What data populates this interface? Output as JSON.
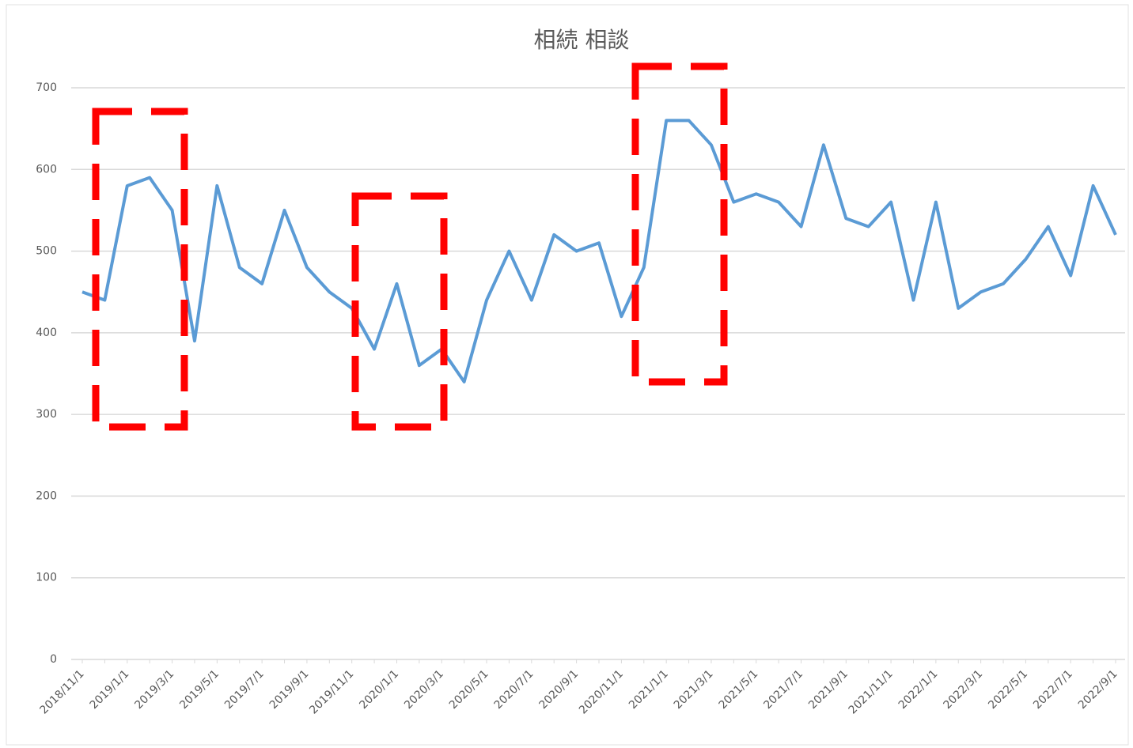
{
  "chart_data": {
    "type": "line",
    "title": "相続 相談",
    "categories": [
      "2018/11/1",
      null,
      "2019/1/1",
      null,
      "2019/3/1",
      null,
      "2019/5/1",
      null,
      "2019/7/1",
      null,
      "2019/9/1",
      null,
      "2019/11/1",
      null,
      "2020/1/1",
      null,
      "2020/3/1",
      null,
      "2020/5/1",
      null,
      "2020/7/1",
      null,
      "2020/9/1",
      null,
      "2020/11/1",
      null,
      "2021/1/1",
      null,
      "2021/3/1",
      null,
      "2021/5/1",
      null,
      "2021/7/1",
      null,
      "2021/9/1",
      null,
      "2021/11/1",
      null,
      "2022/1/1",
      null,
      "2022/3/1",
      null,
      "2022/5/1",
      null,
      "2022/7/1",
      null,
      "2022/9/1"
    ],
    "values": [
      450,
      440,
      580,
      590,
      550,
      390,
      580,
      480,
      460,
      550,
      480,
      450,
      430,
      380,
      460,
      360,
      380,
      340,
      440,
      500,
      440,
      520,
      500,
      510,
      420,
      480,
      660,
      660,
      630,
      560,
      570,
      560,
      530,
      630,
      540,
      530,
      560,
      440,
      560,
      430,
      450,
      460,
      490,
      530,
      470,
      580,
      520
    ],
    "color": "#5b9bd5",
    "ylim": [
      0,
      700
    ],
    "yticks": [
      0,
      100,
      200,
      300,
      400,
      500,
      600,
      700
    ],
    "grid": true
  }
}
